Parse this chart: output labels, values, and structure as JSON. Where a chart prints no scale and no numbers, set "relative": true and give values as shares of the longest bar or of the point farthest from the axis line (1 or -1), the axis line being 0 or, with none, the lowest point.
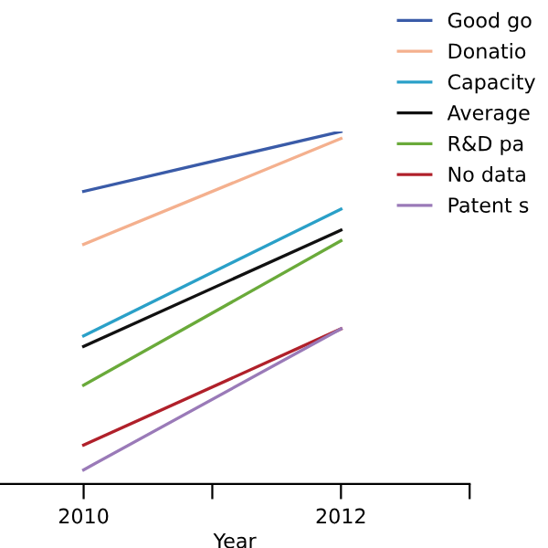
{
  "chart_data": {
    "type": "line",
    "relative": true,
    "xlabel": "Year",
    "x": [
      2010,
      2012
    ],
    "xlim": [
      2009.35,
      2013
    ],
    "xticks": [
      2010,
      {
        "value": 2011,
        "label": null
      },
      2012,
      {
        "value": 2013,
        "label": null
      }
    ],
    "legend": "top right",
    "grid": false,
    "marker": "none",
    "line_style": "solid",
    "series": [
      {
        "name": "Good go",
        "color": "#3a5ba8",
        "values": [
          0.83,
          1.0
        ]
      },
      {
        "name": "Donatio",
        "color": "#f4b08e",
        "values": [
          0.68,
          0.98
        ]
      },
      {
        "name": "Capacity",
        "color": "#2aa0c8",
        "values": [
          0.42,
          0.78
        ]
      },
      {
        "name": "Average",
        "color": "#111111",
        "values": [
          0.39,
          0.72
        ]
      },
      {
        "name": "R&D pa",
        "color": "#6aaa3a",
        "values": [
          0.28,
          0.69
        ]
      },
      {
        "name": "No data",
        "color": "#b0202a",
        "values": [
          0.11,
          0.44
        ]
      },
      {
        "name": "Patent s",
        "color": "#9a7ab8",
        "values": [
          0.04,
          0.44
        ]
      }
    ]
  }
}
